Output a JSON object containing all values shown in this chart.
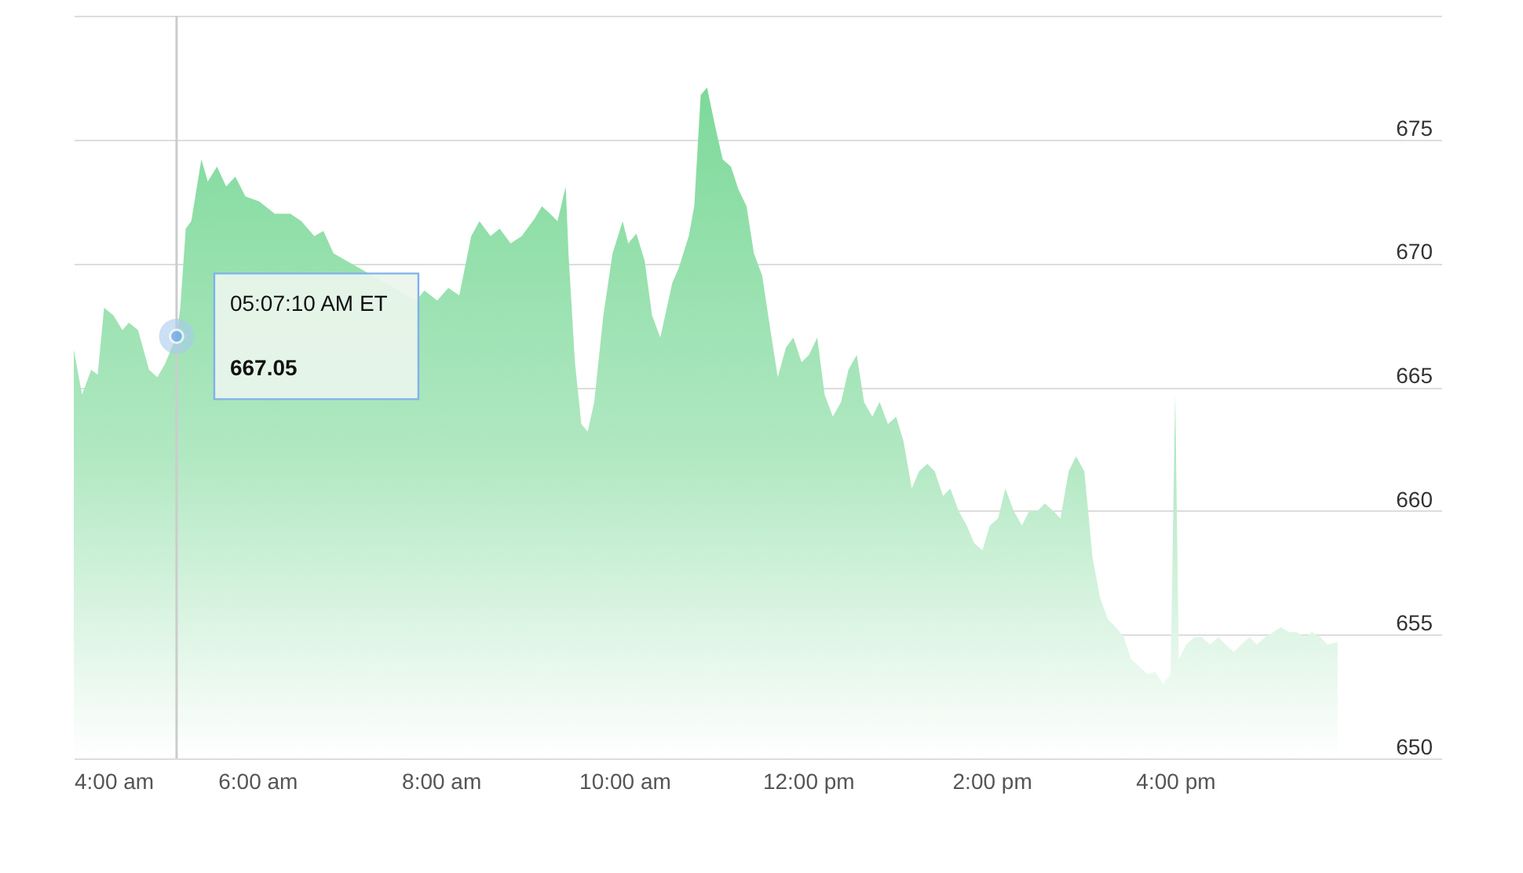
{
  "chart_data": {
    "type": "area",
    "x": [
      4.0,
      4.09,
      4.19,
      4.26,
      4.33,
      4.43,
      4.53,
      4.6,
      4.7,
      4.82,
      4.91,
      4.99,
      5.12,
      5.16,
      5.22,
      5.28,
      5.39,
      5.46,
      5.56,
      5.66,
      5.76,
      5.87,
      6.02,
      6.19,
      6.36,
      6.48,
      6.62,
      6.72,
      6.83,
      6.88,
      7.0,
      7.22,
      7.48,
      7.73,
      7.82,
      7.96,
      8.08,
      8.2,
      8.33,
      8.42,
      8.54,
      8.64,
      8.76,
      8.88,
      9.02,
      9.1,
      9.19,
      9.27,
      9.36,
      9.39,
      9.46,
      9.53,
      9.6,
      9.67,
      9.77,
      9.87,
      9.98,
      10.04,
      10.13,
      10.22,
      10.3,
      10.39,
      10.52,
      10.59,
      10.7,
      10.76,
      10.83,
      10.9,
      10.99,
      11.07,
      11.16,
      11.24,
      11.33,
      11.41,
      11.5,
      11.59,
      11.67,
      11.76,
      11.84,
      11.93,
      12.01,
      12.1,
      12.18,
      12.27,
      12.36,
      12.44,
      12.53,
      12.61,
      12.7,
      12.78,
      12.87,
      12.96,
      13.04,
      13.13,
      13.21,
      13.3,
      13.38,
      13.47,
      13.55,
      13.64,
      13.73,
      13.81,
      13.9,
      13.98,
      14.07,
      14.15,
      14.24,
      14.33,
      14.41,
      14.5,
      14.58,
      14.67,
      14.75,
      14.84,
      14.92,
      15.01,
      15.1,
      15.18,
      15.27,
      15.35,
      15.44,
      15.52,
      15.61,
      15.7,
      15.78,
      15.87,
      15.95,
      16.0,
      16.04,
      16.12,
      16.21,
      16.29,
      16.38,
      16.47,
      16.55,
      16.64,
      16.72,
      16.81,
      16.89,
      16.98,
      17.07,
      17.15,
      17.24,
      17.32,
      17.41,
      17.49,
      17.58,
      17.66,
      17.77
    ],
    "series": [
      {
        "color": "#7dd99a",
        "values": [
          666.5,
          664.7,
          665.7,
          665.5,
          668.2,
          667.9,
          667.3,
          667.6,
          667.3,
          665.7,
          665.4,
          665.9,
          667.05,
          668.2,
          671.4,
          671.7,
          674.2,
          673.3,
          673.9,
          673.1,
          673.5,
          672.7,
          672.5,
          672.0,
          672.0,
          671.7,
          671.1,
          671.3,
          670.4,
          null,
          null,
          null,
          null,
          668.5,
          668.9,
          668.5,
          669.0,
          668.7,
          671.1,
          671.7,
          671.1,
          671.4,
          670.8,
          671.1,
          671.8,
          672.3,
          672.0,
          671.7,
          673.1,
          670.4,
          666.0,
          663.5,
          663.2,
          664.4,
          667.9,
          670.4,
          671.7,
          670.8,
          671.2,
          670.1,
          667.9,
          667.0,
          669.2,
          669.8,
          671.1,
          672.3,
          676.8,
          677.1,
          675.5,
          674.2,
          673.9,
          673.0,
          672.3,
          670.4,
          669.5,
          667.3,
          665.4,
          666.6,
          667.0,
          666.0,
          666.3,
          667.0,
          664.7,
          663.8,
          664.4,
          665.7,
          666.3,
          664.4,
          663.8,
          664.4,
          663.5,
          663.8,
          662.8,
          660.9,
          661.6,
          661.9,
          661.6,
          660.6,
          660.9,
          660.0,
          659.4,
          658.7,
          658.4,
          659.4,
          659.7,
          660.9,
          660.0,
          659.4,
          660.0,
          660.0,
          660.3,
          660.0,
          659.7,
          661.6,
          662.2,
          661.6,
          658.1,
          656.5,
          655.6,
          655.3,
          654.9,
          654.0,
          653.7,
          653.4,
          653.5,
          653.0,
          653.4,
          664.7,
          654.0,
          654.6,
          654.9,
          654.9,
          654.6,
          654.9,
          654.6,
          654.3,
          654.6,
          654.9,
          654.6,
          654.9,
          655.1,
          655.3,
          655.1,
          655.1,
          654.9,
          655.1,
          654.9,
          654.6,
          654.7
        ]
      }
    ],
    "xlim": [
      4,
      18.9
    ],
    "xticks": [
      {
        "value": 4,
        "label": "4:00 am"
      },
      {
        "value": 6,
        "label": "6:00 am"
      },
      {
        "value": 8,
        "label": "8:00 am"
      },
      {
        "value": 10,
        "label": "10:00 am"
      },
      {
        "value": 12,
        "label": "12:00 pm"
      },
      {
        "value": 14,
        "label": "2:00 pm"
      },
      {
        "value": 16,
        "label": "4:00 pm"
      }
    ],
    "ylim": [
      650,
      680
    ],
    "yticks": [
      650,
      655,
      660,
      665,
      670,
      675,
      {
        "value": 680,
        "label": null
      }
    ],
    "grid": "y",
    "ref_lines": [
      {
        "axis": "x",
        "value": 5.12,
        "color": "#cccccc"
      }
    ],
    "annotations": [
      {
        "text": "05:07:10 AM ET",
        "x": 5.12,
        "y": 667.05
      },
      {
        "text": "667.05",
        "x": 5.12,
        "y": 667.05
      }
    ]
  }
}
